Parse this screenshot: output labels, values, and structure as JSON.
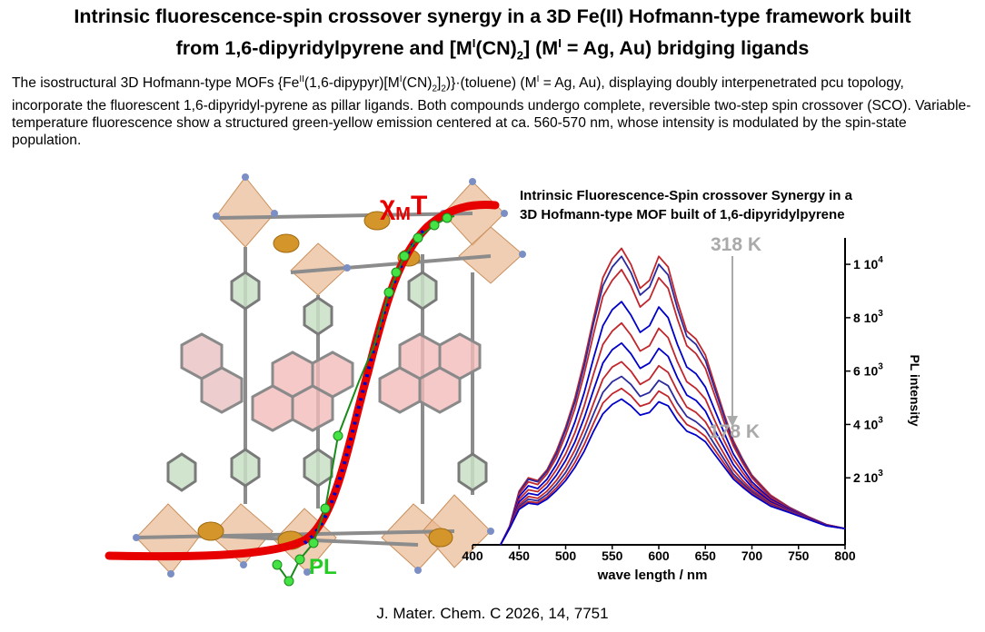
{
  "header": {
    "title_line1": "Intrinsic fluorescence-spin crossover synergy in a 3D Fe(II) Hofmann-type framework built",
    "title_line2_pre": "from 1,6-dipyridylpyrene and [M",
    "title_sup1": "I",
    "title_mid": "(CN)",
    "title_sub": "2",
    "title_mid2": "] (M",
    "title_sup2": "I",
    "title_post": " = Ag, Au) bridging ligands"
  },
  "abstract": {
    "p1": "The isostructural 3D Hofmann-type MOFs {Fe",
    "s1": "II",
    "p2": "(1,6-dipypyr)[M",
    "s2": "I",
    "p3": "(CN)",
    "b1": "2",
    "p4": "]",
    "b2": "2",
    "p5": ")}·(toluene) (M",
    "s3": "I",
    "p6": " = Ag, Au), displaying doubly interpenetrated pcu topology, incorporate the fluorescent 1,6-dipyridyl-pyrene as pillar ligands. Both compounds undergo complete, reversible two-step spin crossover (SCO). Variable-temperature fluorescence show a structured green-yellow emission centered at ca. 560-570 nm, whose intensity is modulated by the spin-state population."
  },
  "graphic": {
    "title_line1": "Intrinsic Fluorescence-Spin crossover Synergy in a",
    "title_line2": "3D Hofmann-type MOF built of 1,6-dipyridylpyrene",
    "chi_label": "χ",
    "chi_sub": "M",
    "chi_T": "T",
    "pl_label": "PL",
    "temp_high": "318 K",
    "temp_low": "178 K",
    "colors": {
      "chi": "#e60000",
      "pl": "#22cc22",
      "blue_dots": "#0000cc",
      "arrow": "#aaaaaa"
    }
  },
  "chart_data": {
    "type": "line",
    "xlabel": "wave length / nm",
    "ylabel": "PL intensity",
    "xlim": [
      400,
      800
    ],
    "ylim": [
      0,
      11500
    ],
    "xticks": [
      400,
      450,
      500,
      550,
      600,
      650,
      700,
      750,
      800
    ],
    "yticks": [
      {
        "value": 2000,
        "mant": "2",
        "exp": "3"
      },
      {
        "value": 4000,
        "mant": "4",
        "exp": "3"
      },
      {
        "value": 6000,
        "mant": "6",
        "exp": "3"
      },
      {
        "value": 8000,
        "mant": "8",
        "exp": "3"
      },
      {
        "value": 10000,
        "mant": "1",
        "exp": "4"
      }
    ],
    "x": [
      430,
      440,
      450,
      460,
      470,
      480,
      490,
      500,
      510,
      520,
      530,
      540,
      550,
      560,
      570,
      580,
      590,
      600,
      610,
      620,
      630,
      640,
      650,
      660,
      670,
      680,
      690,
      700,
      720,
      740,
      760,
      780,
      800
    ],
    "series": [
      {
        "color": "#c0272d",
        "values": [
          0,
          200,
          1500,
          2000,
          1900,
          2300,
          3000,
          3900,
          5000,
          6400,
          8000,
          9500,
          10200,
          10600,
          10000,
          9100,
          9400,
          10300,
          9900,
          8600,
          7500,
          7200,
          6600,
          5500,
          4400,
          3400,
          2700,
          2100,
          1350,
          900,
          550,
          250,
          100
        ]
      },
      {
        "color": "#2a2a9e",
        "values": [
          0,
          190,
          1450,
          1950,
          1850,
          2250,
          2900,
          3800,
          4850,
          6200,
          7800,
          9200,
          9900,
          10300,
          9700,
          8850,
          9150,
          10000,
          9600,
          8350,
          7300,
          7000,
          6400,
          5350,
          4300,
          3300,
          2650,
          2050,
          1300,
          880,
          540,
          245,
          100
        ]
      },
      {
        "color": "#c0272d",
        "values": [
          0,
          180,
          1400,
          1850,
          1750,
          2150,
          2750,
          3600,
          4600,
          5900,
          7400,
          8800,
          9400,
          9800,
          9200,
          8400,
          8700,
          9500,
          9100,
          7950,
          6950,
          6650,
          6100,
          5100,
          4100,
          3200,
          2550,
          2000,
          1270,
          860,
          530,
          240,
          100
        ]
      },
      {
        "color": "#0000c8",
        "values": [
          0,
          170,
          1300,
          1700,
          1600,
          1950,
          2500,
          3200,
          4100,
          5200,
          6500,
          7700,
          8300,
          8600,
          8100,
          7450,
          7700,
          8400,
          8000,
          7000,
          6150,
          5900,
          5400,
          4550,
          3700,
          2900,
          2350,
          1850,
          1200,
          830,
          510,
          230,
          100
        ]
      },
      {
        "color": "#c0272d",
        "values": [
          0,
          160,
          1200,
          1550,
          1480,
          1800,
          2300,
          2900,
          3700,
          4700,
          5900,
          7000,
          7500,
          7800,
          7350,
          6750,
          6950,
          7600,
          7250,
          6350,
          5600,
          5350,
          4950,
          4150,
          3400,
          2700,
          2200,
          1750,
          1150,
          800,
          500,
          225,
          100
        ]
      },
      {
        "color": "#0000c8",
        "values": [
          0,
          150,
          1100,
          1420,
          1350,
          1650,
          2100,
          2650,
          3350,
          4250,
          5300,
          6300,
          6800,
          7050,
          6650,
          6100,
          6300,
          6850,
          6550,
          5750,
          5100,
          4900,
          4500,
          3800,
          3150,
          2500,
          2050,
          1650,
          1100,
          780,
          490,
          220,
          100
        ]
      },
      {
        "color": "#c0272d",
        "values": [
          0,
          140,
          1000,
          1300,
          1230,
          1500,
          1900,
          2400,
          3050,
          3850,
          4800,
          5700,
          6150,
          6350,
          6000,
          5500,
          5700,
          6200,
          5950,
          5250,
          4650,
          4450,
          4100,
          3500,
          2900,
          2300,
          1900,
          1550,
          1050,
          760,
          480,
          215,
          100
        ]
      },
      {
        "color": "#2a2a9e",
        "values": [
          0,
          130,
          930,
          1200,
          1140,
          1380,
          1750,
          2200,
          2800,
          3550,
          4400,
          5200,
          5600,
          5800,
          5500,
          5050,
          5200,
          5650,
          5450,
          4800,
          4300,
          4100,
          3800,
          3250,
          2700,
          2150,
          1800,
          1480,
          1000,
          740,
          470,
          210,
          100
        ]
      },
      {
        "color": "#c0272d",
        "values": [
          0,
          120,
          870,
          1110,
          1060,
          1280,
          1620,
          2030,
          2580,
          3250,
          4050,
          4800,
          5150,
          5350,
          5080,
          4680,
          4800,
          5250,
          5050,
          4450,
          4000,
          3820,
          3550,
          3050,
          2550,
          2050,
          1720,
          1420,
          970,
          720,
          460,
          205,
          100
        ]
      },
      {
        "color": "#0000c8",
        "values": [
          0,
          115,
          820,
          1050,
          1000,
          1200,
          1520,
          1900,
          2400,
          3000,
          3750,
          4400,
          4750,
          4950,
          4700,
          4350,
          4450,
          4850,
          4700,
          4150,
          3750,
          3600,
          3350,
          2880,
          2420,
          1960,
          1650,
          1370,
          940,
          700,
          450,
          200,
          100
        ]
      }
    ]
  }
}
